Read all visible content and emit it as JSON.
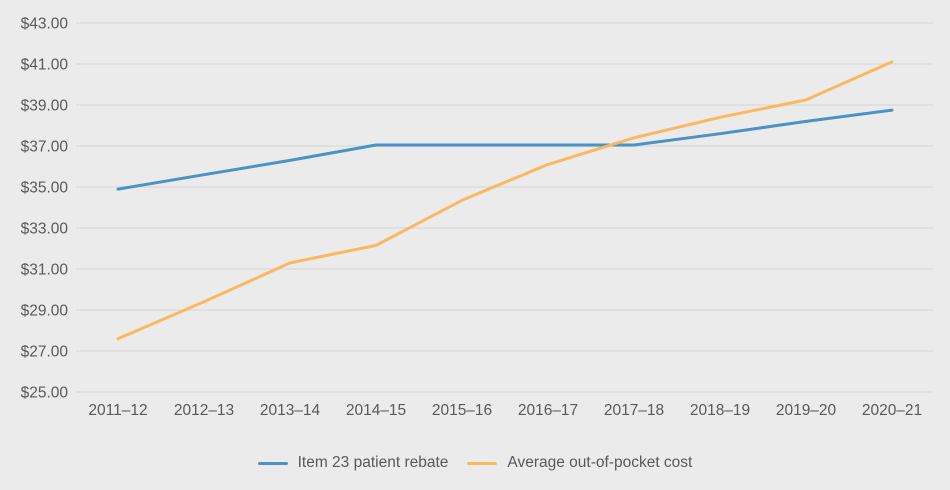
{
  "page": {
    "background_color": "#ebebeb",
    "gridline_color": "#dcdcdc",
    "text_color": "#595959"
  },
  "chart_data": {
    "type": "line",
    "title": "",
    "xlabel": "",
    "ylabel": "",
    "categories": [
      "2011–12",
      "2012–13",
      "2013–14",
      "2014–15",
      "2015–16",
      "2016–17",
      "2017–18",
      "2018–19",
      "2019–20",
      "2020–21"
    ],
    "series": [
      {
        "name": "Item 23 patient rebate",
        "color": "#4b92c5",
        "values": [
          34.9,
          35.6,
          36.3,
          37.05,
          37.05,
          37.05,
          37.05,
          37.6,
          38.2,
          38.75
        ]
      },
      {
        "name": "Average out-of-pocket cost",
        "color": "#fbb860",
        "values": [
          27.6,
          29.4,
          31.3,
          32.15,
          34.35,
          36.1,
          37.4,
          38.4,
          39.25,
          41.1
        ]
      }
    ],
    "ylim": [
      25,
      43
    ],
    "ytick_values": [
      43,
      41,
      39,
      37,
      35,
      33,
      31,
      29,
      27,
      25
    ],
    "ytick_labels": [
      "$43.00",
      "$41.00",
      "$39.00",
      "$37.00",
      "$35.00",
      "$33.00",
      "$31.00",
      "$29.00",
      "$27.00",
      "$25.00"
    ],
    "grid": "horizontal",
    "legend_position": "bottom"
  }
}
